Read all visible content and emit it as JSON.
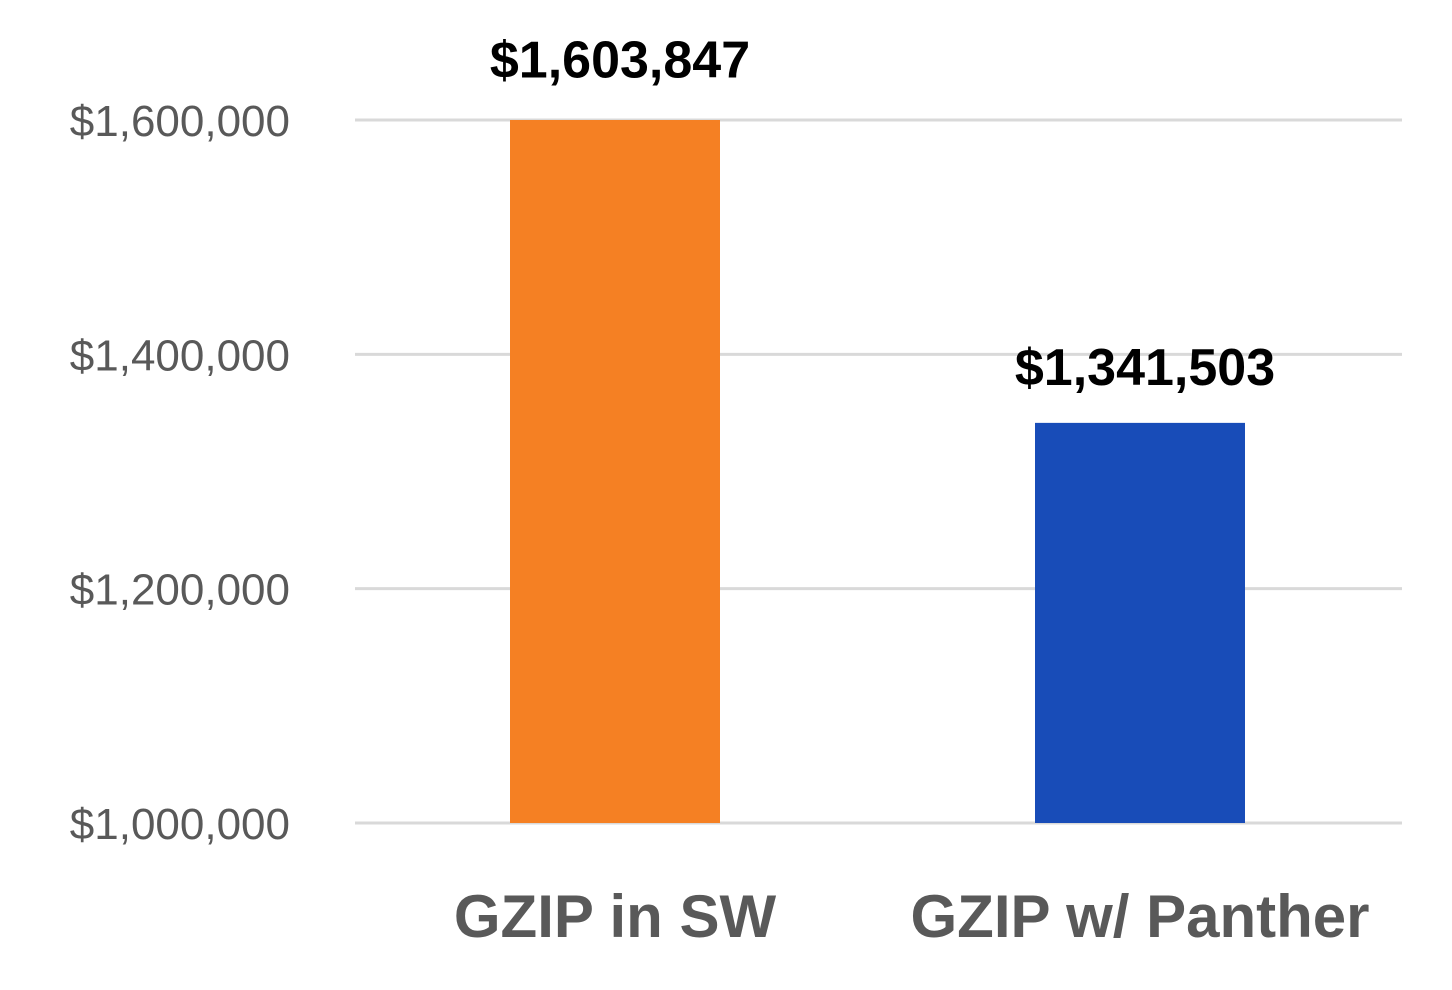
{
  "chart_data": {
    "type": "bar",
    "categories": [
      "GZIP in SW",
      "GZIP w/ Panther"
    ],
    "values": [
      1603847,
      1341503
    ],
    "data_labels": [
      "$1,603,847",
      "$1,341,503"
    ],
    "colors": [
      "#f58023",
      "#184cb8"
    ],
    "title": "",
    "xlabel": "",
    "ylabel": "",
    "ylim": [
      1000000,
      1600000
    ],
    "yticks": [
      1000000,
      1200000,
      1400000,
      1600000
    ],
    "ytick_labels": [
      "$1,000,000",
      "$1,200,000",
      "$1,400,000",
      "$1,600,000"
    ],
    "grid": true,
    "legend": "none"
  }
}
